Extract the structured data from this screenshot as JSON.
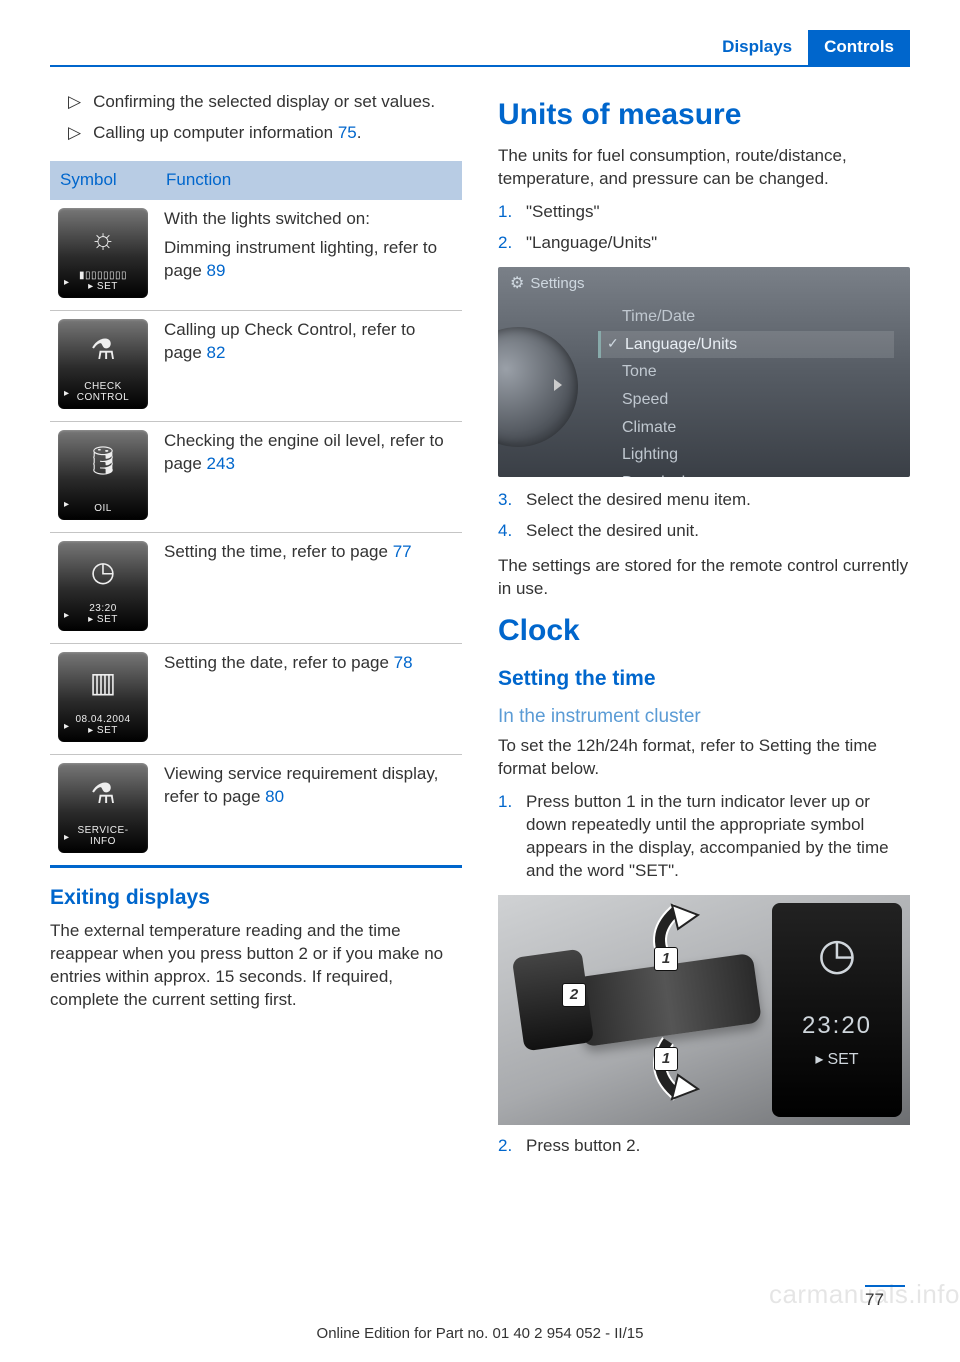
{
  "header": {
    "breadcrumb": "Displays",
    "section": "Controls"
  },
  "left": {
    "bullets": [
      {
        "text": "Confirming the selected display or set values."
      },
      {
        "text_pre": "Calling up computer information   ",
        "page_ref": "75",
        "text_post": "."
      }
    ],
    "table": {
      "head_symbol": "Symbol",
      "head_function": "Function",
      "rows": [
        {
          "icon": "☼",
          "label": "▮▯▯▯▯▯▯▯\n▸ SET",
          "line1": "With the lights switched on:",
          "line2_pre": "Dimming instrument lighting, refer to page ",
          "page": "89"
        },
        {
          "icon": "⚗",
          "label": "CHECK\nCONTROL",
          "line2_pre": "Calling up Check Control, refer to page ",
          "page": "82"
        },
        {
          "icon": "🛢",
          "label": "OIL",
          "line2_pre": "Checking the engine oil level, refer to page ",
          "page": "243"
        },
        {
          "icon": "◷",
          "label": "23:20\n▸ SET",
          "line2_pre": "Setting the time, refer to page ",
          "page": "77"
        },
        {
          "icon": "▥",
          "label": "08.04.2004\n▸ SET",
          "line2_pre": "Setting the date, refer to page ",
          "page": "78"
        },
        {
          "icon": "⚗",
          "label": "SERVICE-\nINFO",
          "line2_pre": "Viewing service requirement display, refer to page ",
          "page": "80"
        }
      ]
    },
    "exiting": {
      "heading": "Exiting displays",
      "body": "The external temperature reading and the time reappear when you press button 2 or if you make no entries within approx. 15 seconds. If required, complete the current setting first."
    }
  },
  "right": {
    "units": {
      "heading": "Units of measure",
      "intro": "The units for fuel consumption, route/distance, temperature, and pressure can be changed.",
      "steps1": [
        "\"Settings\"",
        "\"Language/Units\""
      ],
      "menu_title": "Settings",
      "menu_items": [
        "Time/Date",
        "Language/Units",
        "Tone",
        "Speed",
        "Climate",
        "Lighting",
        "Door locks"
      ],
      "menu_selected_index": 1,
      "steps2": [
        "Select the desired menu item.",
        "Select the desired unit."
      ],
      "footnote": "The settings are stored for the remote control currently in use."
    },
    "clock": {
      "heading": "Clock",
      "sub": "Setting the time",
      "sub2": "In the instrument cluster",
      "body": "To set the 12h/24h format, refer to Setting the time format below.",
      "step1": "Press button 1 in the turn indicator lever up or down repeatedly until the appropriate symbol appears in the display, accompa­nied by the time and the word \"SET\".",
      "display_time": "23:20",
      "display_set": "SET",
      "step2": "Press button 2."
    }
  },
  "footer": {
    "text": "Online Edition for Part no. 01 40 2 954 052 - II/15",
    "page": "77",
    "watermark": "carmanuals.info"
  }
}
